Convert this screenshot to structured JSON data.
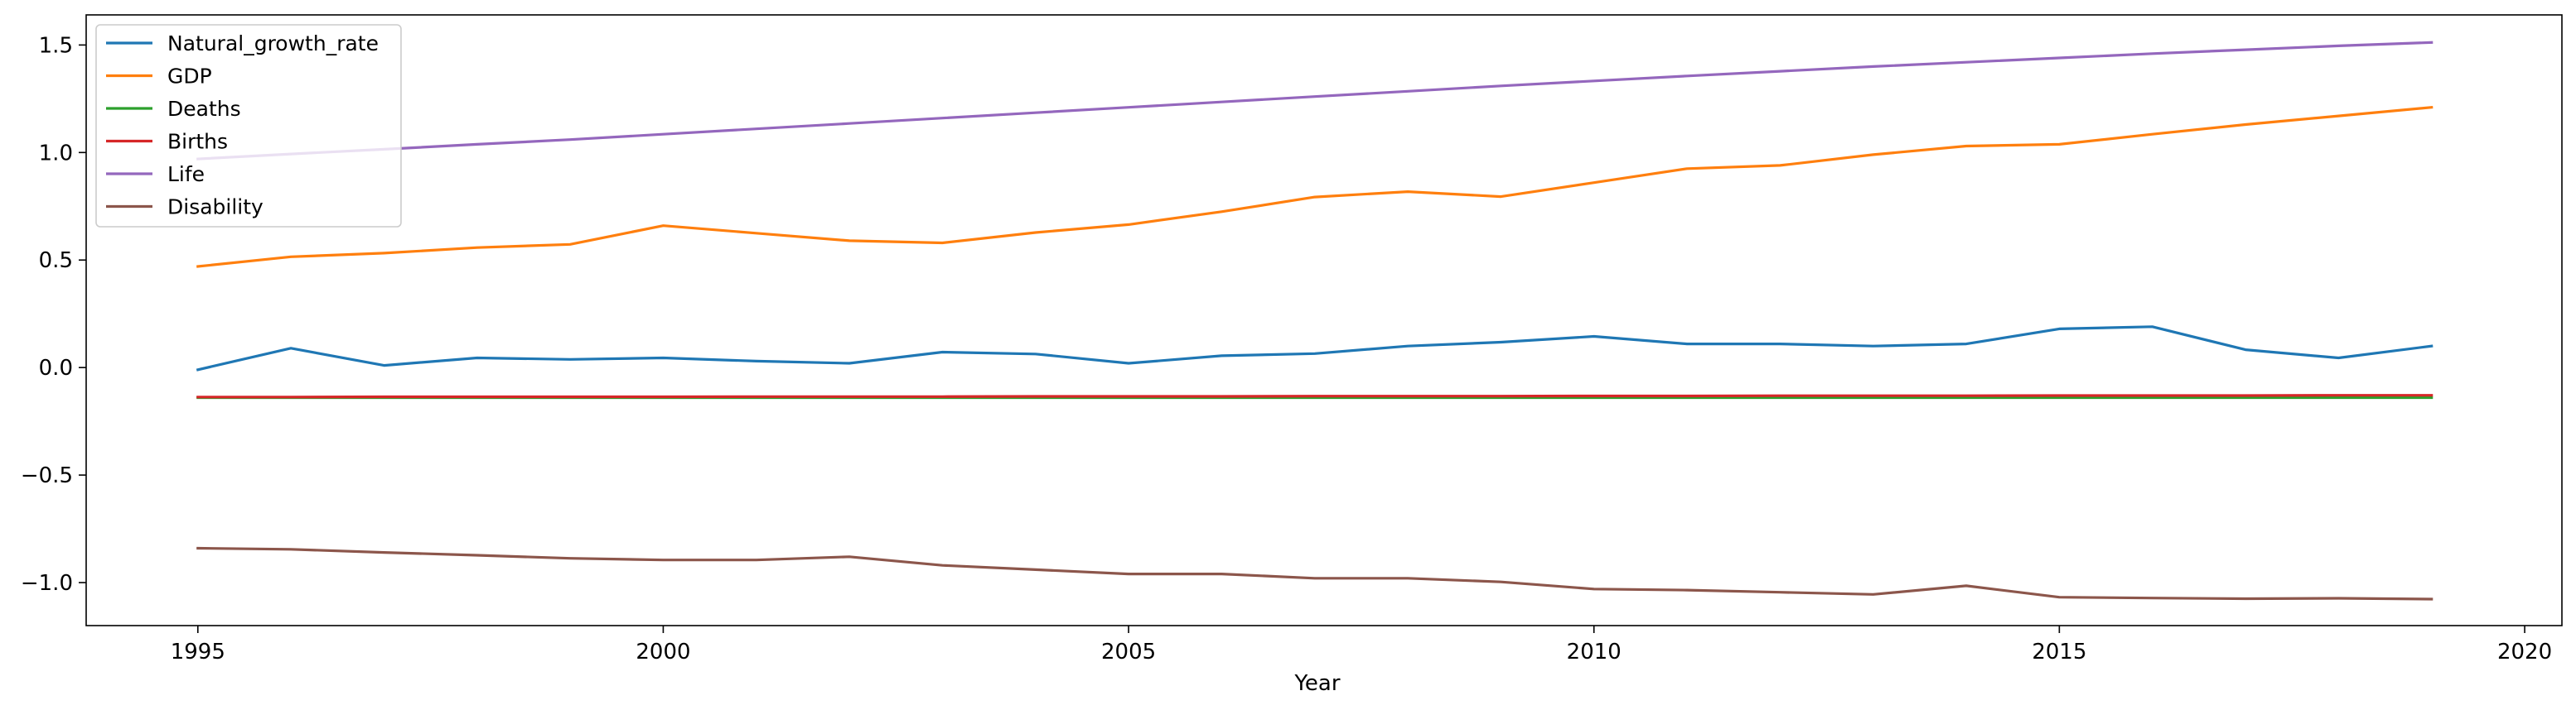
{
  "chart_data": {
    "type": "line",
    "title": "",
    "xlabel": "Year",
    "ylabel": "",
    "xlim": [
      1993.8,
      2020.4
    ],
    "ylim": [
      -1.2,
      1.64
    ],
    "grid": false,
    "legend_position": "top-left",
    "x_ticks": [
      1995,
      2000,
      2005,
      2010,
      2015,
      2020
    ],
    "y_ticks": [
      -1.0,
      -0.5,
      0.0,
      0.5,
      1.0,
      1.5
    ],
    "x": [
      1995,
      1996,
      1997,
      1998,
      1999,
      2000,
      2001,
      2002,
      2003,
      2004,
      2005,
      2006,
      2007,
      2008,
      2009,
      2010,
      2011,
      2012,
      2013,
      2014,
      2015,
      2016,
      2017,
      2018,
      2019
    ],
    "series": [
      {
        "name": "Natural_growth_rate",
        "color": "#1f77b4",
        "values": [
          -0.01,
          0.09,
          0.01,
          0.045,
          0.038,
          0.045,
          0.03,
          0.02,
          0.072,
          0.063,
          0.02,
          0.055,
          0.065,
          0.1,
          0.118,
          0.145,
          0.11,
          0.11,
          0.1,
          0.11,
          0.18,
          0.19,
          0.083,
          0.045,
          0.1
        ]
      },
      {
        "name": "GDP",
        "color": "#ff7f0e",
        "values": [
          0.47,
          0.515,
          0.532,
          0.558,
          0.573,
          0.66,
          0.625,
          0.59,
          0.58,
          0.628,
          0.665,
          0.725,
          0.793,
          0.818,
          0.795,
          0.86,
          0.925,
          0.94,
          0.99,
          1.03,
          1.038,
          1.085,
          1.13,
          1.17,
          1.21
        ]
      },
      {
        "name": "Deaths",
        "color": "#2ca02c",
        "values": [
          -0.14,
          -0.14,
          -0.14,
          -0.14,
          -0.14,
          -0.14,
          -0.14,
          -0.14,
          -0.14,
          -0.14,
          -0.14,
          -0.14,
          -0.14,
          -0.14,
          -0.14,
          -0.14,
          -0.14,
          -0.14,
          -0.14,
          -0.14,
          -0.14,
          -0.14,
          -0.14,
          -0.14,
          -0.14
        ]
      },
      {
        "name": "Births",
        "color": "#d62728",
        "values": [
          -0.137,
          -0.137,
          -0.136,
          -0.136,
          -0.136,
          -0.136,
          -0.135,
          -0.135,
          -0.135,
          -0.134,
          -0.134,
          -0.134,
          -0.133,
          -0.133,
          -0.133,
          -0.132,
          -0.132,
          -0.131,
          -0.131,
          -0.131,
          -0.13,
          -0.13,
          -0.13,
          -0.129,
          -0.129
        ]
      },
      {
        "name": "Life",
        "color": "#9467bd",
        "values": [
          0.97,
          0.993,
          1.015,
          1.038,
          1.06,
          1.085,
          1.11,
          1.135,
          1.16,
          1.185,
          1.21,
          1.235,
          1.26,
          1.285,
          1.31,
          1.333,
          1.356,
          1.378,
          1.4,
          1.42,
          1.44,
          1.46,
          1.478,
          1.496,
          1.512
        ]
      },
      {
        "name": "Disability",
        "color": "#8c564b",
        "values": [
          -0.84,
          -0.845,
          -0.86,
          -0.873,
          -0.887,
          -0.895,
          -0.895,
          -0.88,
          -0.92,
          -0.94,
          -0.96,
          -0.96,
          -0.98,
          -0.98,
          -0.997,
          -1.03,
          -1.035,
          -1.045,
          -1.055,
          -1.015,
          -1.068,
          -1.072,
          -1.075,
          -1.073,
          -1.077
        ]
      }
    ]
  }
}
